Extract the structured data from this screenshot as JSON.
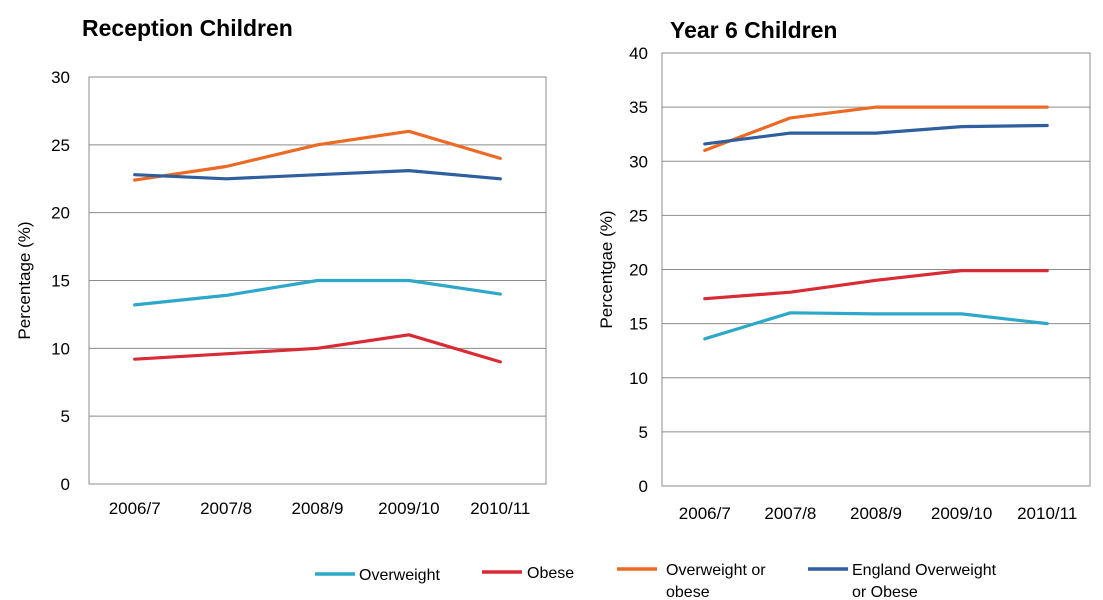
{
  "chart_data": [
    {
      "type": "line",
      "title": "Reception Children",
      "ylabel": "Percentage (%)",
      "xlabel": "",
      "categories": [
        "2006/7",
        "2007/8",
        "2008/9",
        "2009/10",
        "2010/11"
      ],
      "ylim": [
        0,
        30
      ],
      "yticks": [
        0,
        5,
        10,
        15,
        20,
        25,
        30
      ],
      "grid": true,
      "series": [
        {
          "name": "Overweight",
          "color": "#2ea8c9",
          "values": [
            13.2,
            13.9,
            15.0,
            15.0,
            14.0
          ]
        },
        {
          "name": "Obese",
          "color": "#d92b35",
          "values": [
            9.2,
            9.6,
            10.0,
            11.0,
            9.0
          ]
        },
        {
          "name": "Overweight or obese",
          "color": "#ec6a24",
          "values": [
            22.4,
            23.4,
            25.0,
            26.0,
            24.0
          ]
        },
        {
          "name": "England Overweight or Obese",
          "color": "#2f5f9e",
          "values": [
            22.8,
            22.5,
            22.8,
            23.1,
            22.5
          ]
        }
      ]
    },
    {
      "type": "line",
      "title": "Year 6 Children",
      "ylabel": "Percentgae (%)",
      "xlabel": "",
      "categories": [
        "2006/7",
        "2007/8",
        "2008/9",
        "2009/10",
        "2010/11"
      ],
      "ylim": [
        0,
        40
      ],
      "yticks": [
        0,
        5,
        10,
        15,
        20,
        25,
        30,
        35,
        40
      ],
      "grid": true,
      "series": [
        {
          "name": "Overweight",
          "color": "#2ea8c9",
          "values": [
            13.6,
            16.0,
            15.9,
            15.9,
            15.0
          ]
        },
        {
          "name": "Obese",
          "color": "#d92b35",
          "values": [
            17.3,
            17.9,
            19.0,
            19.9,
            19.9
          ]
        },
        {
          "name": "Overweight or obese",
          "color": "#ec6a24",
          "values": [
            31.0,
            34.0,
            35.0,
            35.0,
            35.0
          ]
        },
        {
          "name": "England Overweight or Obese",
          "color": "#2f5f9e",
          "values": [
            31.6,
            32.6,
            32.6,
            33.2,
            33.3
          ]
        }
      ]
    }
  ],
  "legend": {
    "placement": "bottom",
    "items": [
      {
        "lines": [
          "Overweight"
        ],
        "color": "#2ea8c9"
      },
      {
        "lines": [
          "Obese"
        ],
        "color": "#d92b35"
      },
      {
        "lines": [
          "Overweight or",
          "obese"
        ],
        "color": "#ec6a24"
      },
      {
        "lines": [
          "England Overweight",
          "or Obese"
        ],
        "color": "#2f5f9e"
      }
    ]
  }
}
